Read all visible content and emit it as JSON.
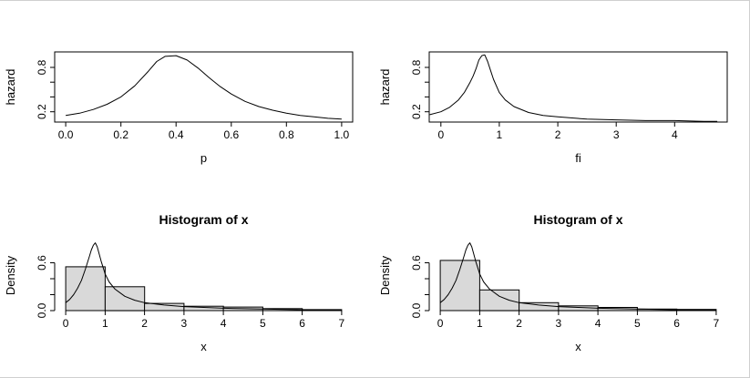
{
  "page": {
    "background": "#ffffff",
    "frame_color": "#cfcfcf",
    "curve_color": "#000000",
    "bar_fill": "#d9d9d9",
    "bar_stroke": "#000000"
  },
  "chart_data": [
    {
      "id": "hazard-vs-p",
      "type": "line",
      "title": "",
      "xlabel": "p",
      "ylabel": "hazard",
      "xlim": [
        -0.04,
        1.04
      ],
      "ylim": [
        0.06,
        1.01
      ],
      "xticks": [
        0,
        0.2,
        0.4,
        0.6,
        0.8,
        1
      ],
      "xtick_labels": [
        "0.0",
        "0.2",
        "0.4",
        "0.6",
        "0.8",
        "1.0"
      ],
      "yticks": [
        0.2,
        0.4,
        0.6,
        0.8
      ],
      "ytick_labels": [
        "0.2",
        "",
        "",
        "0.8"
      ],
      "box": true,
      "grid": false,
      "legend": "none",
      "series": [
        {
          "name": "hazard",
          "x": [
            0,
            0.05,
            0.1,
            0.15,
            0.2,
            0.25,
            0.3,
            0.33,
            0.36,
            0.4,
            0.44,
            0.48,
            0.52,
            0.56,
            0.6,
            0.65,
            0.7,
            0.75,
            0.8,
            0.85,
            0.9,
            0.95,
            1.0
          ],
          "y": [
            0.15,
            0.18,
            0.23,
            0.3,
            0.4,
            0.55,
            0.75,
            0.88,
            0.95,
            0.96,
            0.9,
            0.79,
            0.66,
            0.54,
            0.44,
            0.34,
            0.27,
            0.22,
            0.18,
            0.15,
            0.13,
            0.11,
            0.1
          ]
        }
      ]
    },
    {
      "id": "hazard-vs-fi",
      "type": "line",
      "title": "",
      "xlabel": "fi",
      "ylabel": "hazard",
      "xlim": [
        -0.2,
        4.9
      ],
      "ylim": [
        0.06,
        1.01
      ],
      "xticks": [
        0,
        1,
        2,
        3,
        4
      ],
      "xtick_labels": [
        "0",
        "1",
        "2",
        "3",
        "4"
      ],
      "yticks": [
        0.2,
        0.4,
        0.6,
        0.8
      ],
      "ytick_labels": [
        "0.2",
        "",
        "",
        "0.8"
      ],
      "box": true,
      "grid": false,
      "legend": "none",
      "series": [
        {
          "name": "hazard",
          "x": [
            -0.19,
            0,
            0.15,
            0.3,
            0.4,
            0.5,
            0.55,
            0.6,
            0.65,
            0.7,
            0.75,
            0.8,
            0.85,
            0.9,
            1.0,
            1.1,
            1.25,
            1.5,
            1.75,
            2.0,
            2.5,
            3.0,
            3.5,
            4.0,
            4.5,
            4.73
          ],
          "y": [
            0.16,
            0.2,
            0.26,
            0.36,
            0.46,
            0.6,
            0.68,
            0.78,
            0.9,
            0.96,
            0.97,
            0.88,
            0.76,
            0.64,
            0.46,
            0.36,
            0.27,
            0.19,
            0.15,
            0.13,
            0.1,
            0.09,
            0.08,
            0.08,
            0.07,
            0.07
          ]
        }
      ]
    },
    {
      "id": "histogram-of-x-left",
      "type": "bar",
      "title": "Histogram of x",
      "xlabel": "x",
      "ylabel": "Density",
      "xlim": [
        -0.28,
        7.28
      ],
      "ylim": [
        0,
        0.88
      ],
      "xticks": [
        0,
        1,
        2,
        3,
        4,
        5,
        6,
        7
      ],
      "xtick_labels": [
        "0",
        "1",
        "2",
        "3",
        "4",
        "5",
        "6",
        "7"
      ],
      "yticks": [
        0,
        0.2,
        0.4,
        0.6
      ],
      "ytick_labels": [
        "0.0",
        "",
        "",
        "0.6"
      ],
      "box": false,
      "grid": false,
      "legend": "none",
      "bars": {
        "breaks": [
          0,
          1,
          2,
          3,
          4,
          5,
          6,
          7
        ],
        "density": [
          0.55,
          0.3,
          0.09,
          0.055,
          0.045,
          0.025,
          0.012
        ]
      },
      "series": [
        {
          "name": "density",
          "x": [
            0,
            0.1,
            0.2,
            0.3,
            0.4,
            0.5,
            0.6,
            0.65,
            0.7,
            0.75,
            0.8,
            0.9,
            1.0,
            1.1,
            1.25,
            1.5,
            1.75,
            2.0,
            2.5,
            3.0,
            3.5,
            4.0,
            5.0,
            6.0,
            7.0
          ],
          "y": [
            0.1,
            0.14,
            0.2,
            0.28,
            0.38,
            0.52,
            0.68,
            0.76,
            0.82,
            0.85,
            0.8,
            0.62,
            0.46,
            0.36,
            0.27,
            0.18,
            0.13,
            0.1,
            0.07,
            0.05,
            0.04,
            0.03,
            0.02,
            0.01,
            0.01
          ]
        }
      ]
    },
    {
      "id": "histogram-of-x-right",
      "type": "bar",
      "title": "Histogram of x",
      "xlabel": "x",
      "ylabel": "Density",
      "xlim": [
        -0.28,
        7.28
      ],
      "ylim": [
        0,
        0.88
      ],
      "xticks": [
        0,
        1,
        2,
        3,
        4,
        5,
        6,
        7
      ],
      "xtick_labels": [
        "0",
        "1",
        "2",
        "3",
        "4",
        "5",
        "6",
        "7"
      ],
      "yticks": [
        0,
        0.2,
        0.4,
        0.6
      ],
      "ytick_labels": [
        "0.0",
        "",
        "",
        "0.6"
      ],
      "box": false,
      "grid": false,
      "legend": "none",
      "bars": {
        "breaks": [
          0,
          1,
          2,
          3,
          4,
          5,
          6,
          7
        ],
        "density": [
          0.63,
          0.26,
          0.1,
          0.06,
          0.04,
          0.02,
          0.015
        ]
      },
      "series": [
        {
          "name": "density",
          "x": [
            0,
            0.1,
            0.2,
            0.3,
            0.4,
            0.5,
            0.6,
            0.65,
            0.7,
            0.75,
            0.8,
            0.9,
            1.0,
            1.1,
            1.25,
            1.5,
            1.75,
            2.0,
            2.5,
            3.0,
            3.5,
            4.0,
            5.0,
            6.0,
            7.0
          ],
          "y": [
            0.1,
            0.14,
            0.2,
            0.28,
            0.38,
            0.52,
            0.68,
            0.76,
            0.82,
            0.85,
            0.8,
            0.62,
            0.46,
            0.36,
            0.27,
            0.18,
            0.13,
            0.1,
            0.07,
            0.05,
            0.04,
            0.03,
            0.02,
            0.01,
            0.01
          ]
        }
      ]
    }
  ]
}
